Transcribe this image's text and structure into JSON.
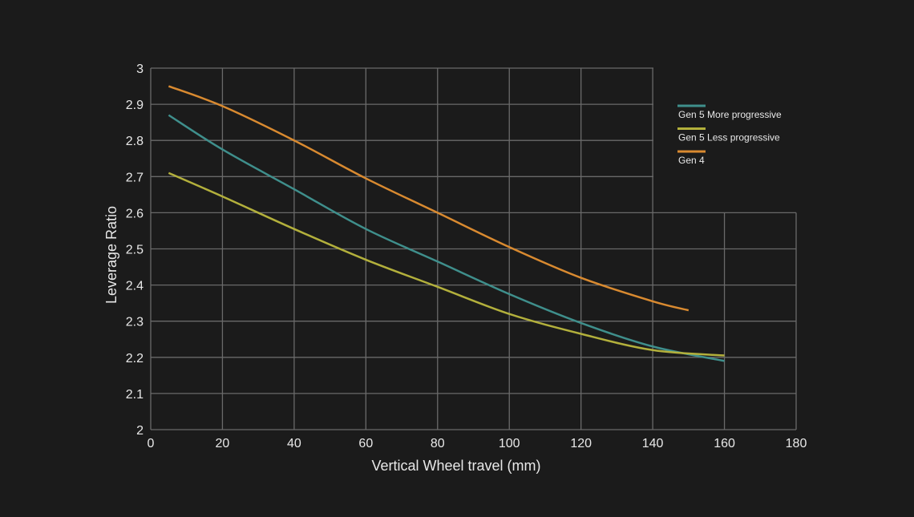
{
  "chart_data": {
    "type": "line",
    "title": "",
    "xlabel": "Vertical Wheel travel (mm)",
    "ylabel": "Leverage Ratio",
    "xlim": [
      0,
      180
    ],
    "ylim": [
      2,
      3
    ],
    "xticks": [
      0,
      20,
      40,
      60,
      80,
      100,
      120,
      140,
      160,
      180
    ],
    "yticks": [
      2,
      2.1,
      2.2,
      2.3,
      2.4,
      2.5,
      2.6,
      2.7,
      2.8,
      2.9,
      3
    ],
    "grid": true,
    "legend_position": "top-right",
    "series": [
      {
        "name": "Gen 5 More progressive",
        "color": "#3f8f8c",
        "x": [
          5,
          20,
          40,
          60,
          80,
          100,
          120,
          140,
          160
        ],
        "y": [
          2.87,
          2.775,
          2.665,
          2.555,
          2.465,
          2.375,
          2.295,
          2.23,
          2.19
        ]
      },
      {
        "name": "Gen 5 Less progressive",
        "color": "#b3b03c",
        "x": [
          5,
          20,
          40,
          60,
          80,
          100,
          120,
          140,
          160
        ],
        "y": [
          2.71,
          2.645,
          2.555,
          2.47,
          2.395,
          2.32,
          2.265,
          2.22,
          2.205
        ]
      },
      {
        "name": "Gen 4",
        "color": "#d98a30",
        "x": [
          5,
          20,
          40,
          60,
          80,
          100,
          120,
          140,
          150
        ],
        "y": [
          2.95,
          2.895,
          2.8,
          2.695,
          2.6,
          2.505,
          2.42,
          2.355,
          2.33
        ]
      }
    ]
  }
}
